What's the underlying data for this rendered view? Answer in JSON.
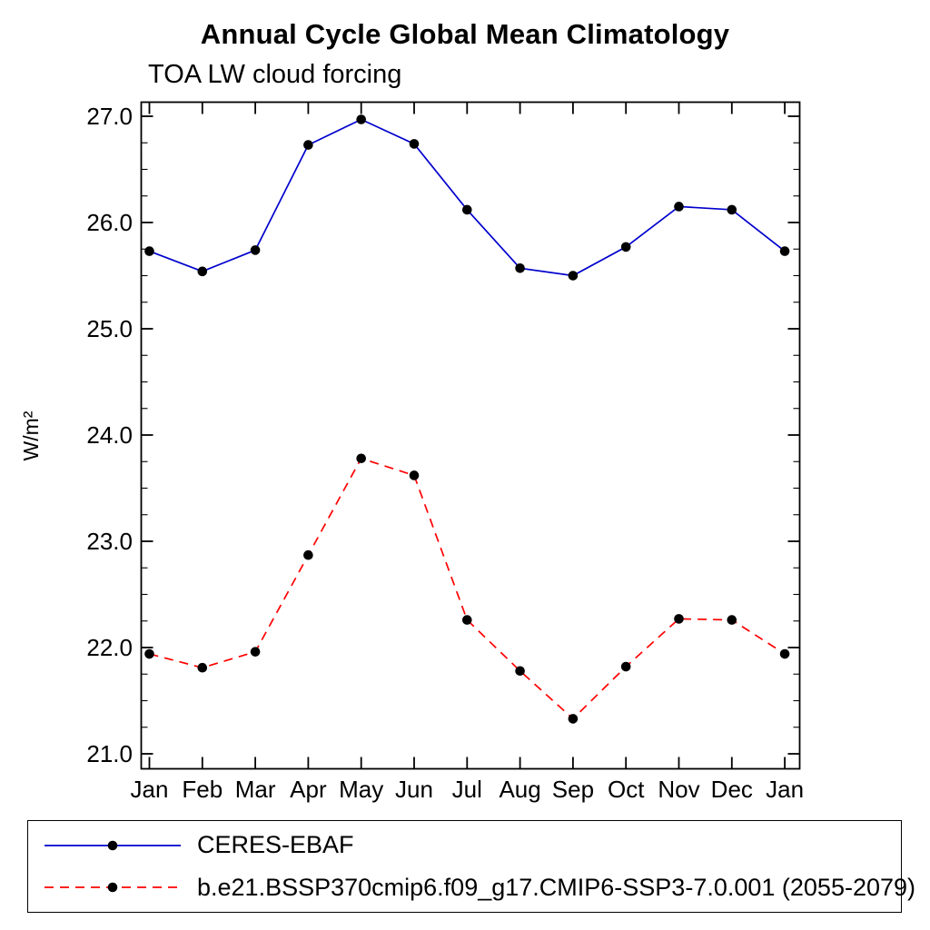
{
  "chart_data": {
    "type": "line",
    "title": "Annual Cycle Global Mean Climatology",
    "subtitle": "TOA LW cloud forcing",
    "ylabel": "W/m²",
    "xlabel": "",
    "categories": [
      "Jan",
      "Feb",
      "Mar",
      "Apr",
      "May",
      "Jun",
      "Jul",
      "Aug",
      "Sep",
      "Oct",
      "Nov",
      "Dec",
      "Jan"
    ],
    "ylim": [
      20.86,
      27.14
    ],
    "yticks": [
      21.0,
      22.0,
      23.0,
      24.0,
      25.0,
      26.0,
      27.0
    ],
    "ytick_labels": [
      "21.0",
      "22.0",
      "23.0",
      "24.0",
      "25.0",
      "26.0",
      "27.0"
    ],
    "minor_tick_step": 0.25,
    "grid": false,
    "legend_position": "bottom",
    "frame_color": "#000000",
    "marker_shape": "filled-circle",
    "series": [
      {
        "name": "CERES-EBAF",
        "color": "#0000cd",
        "style": "solid",
        "marker_color": "#000000",
        "values": [
          25.73,
          25.54,
          25.74,
          26.73,
          26.97,
          26.74,
          26.12,
          25.57,
          25.5,
          25.77,
          26.15,
          26.12,
          25.73
        ]
      },
      {
        "name": "b.e21.BSSP370cmip6.f09_g17.CMIP6-SSP3-7.0.001 (2055-2079)",
        "color": "#ff0000",
        "style": "dashed",
        "marker_color": "#000000",
        "values": [
          21.94,
          21.81,
          21.96,
          22.87,
          23.78,
          23.62,
          22.26,
          21.78,
          21.33,
          21.82,
          22.27,
          22.26,
          21.94
        ]
      }
    ]
  }
}
